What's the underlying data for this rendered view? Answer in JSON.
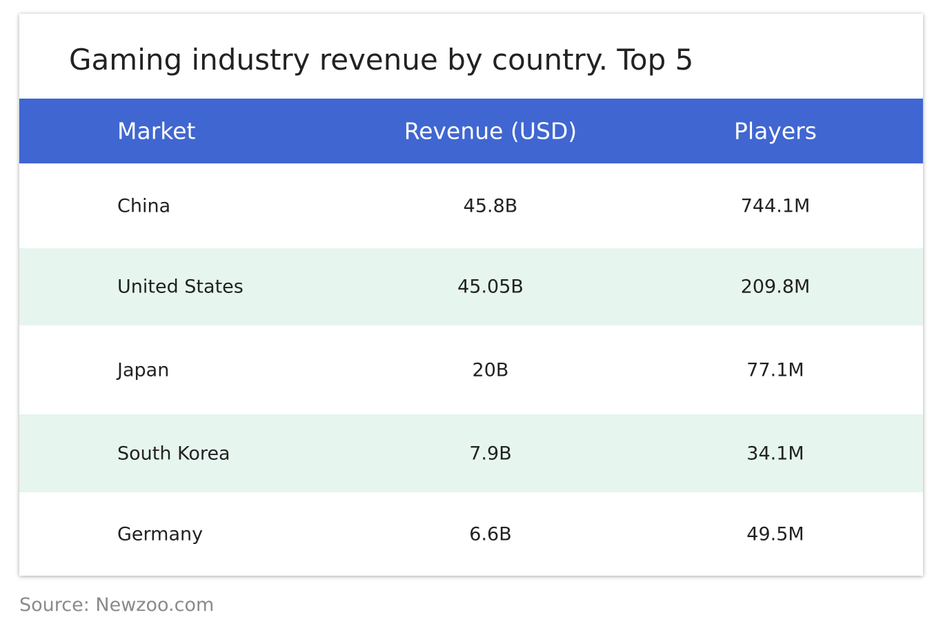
{
  "title": "Gaming industry revenue by country. Top 5",
  "table": {
    "header": [
      "Market",
      "Revenue (USD)",
      "Players"
    ],
    "rows": [
      [
        "China",
        "45.8B",
        "744.1M"
      ],
      [
        "United States",
        "45.05B",
        "209.8M"
      ],
      [
        "Japan",
        "20B",
        "77.1M"
      ],
      [
        "South Korea",
        "7.9B",
        "34.1M"
      ],
      [
        "Germany",
        "6.6B",
        "49.5M"
      ]
    ]
  },
  "source": "Source: Newzoo.com"
}
